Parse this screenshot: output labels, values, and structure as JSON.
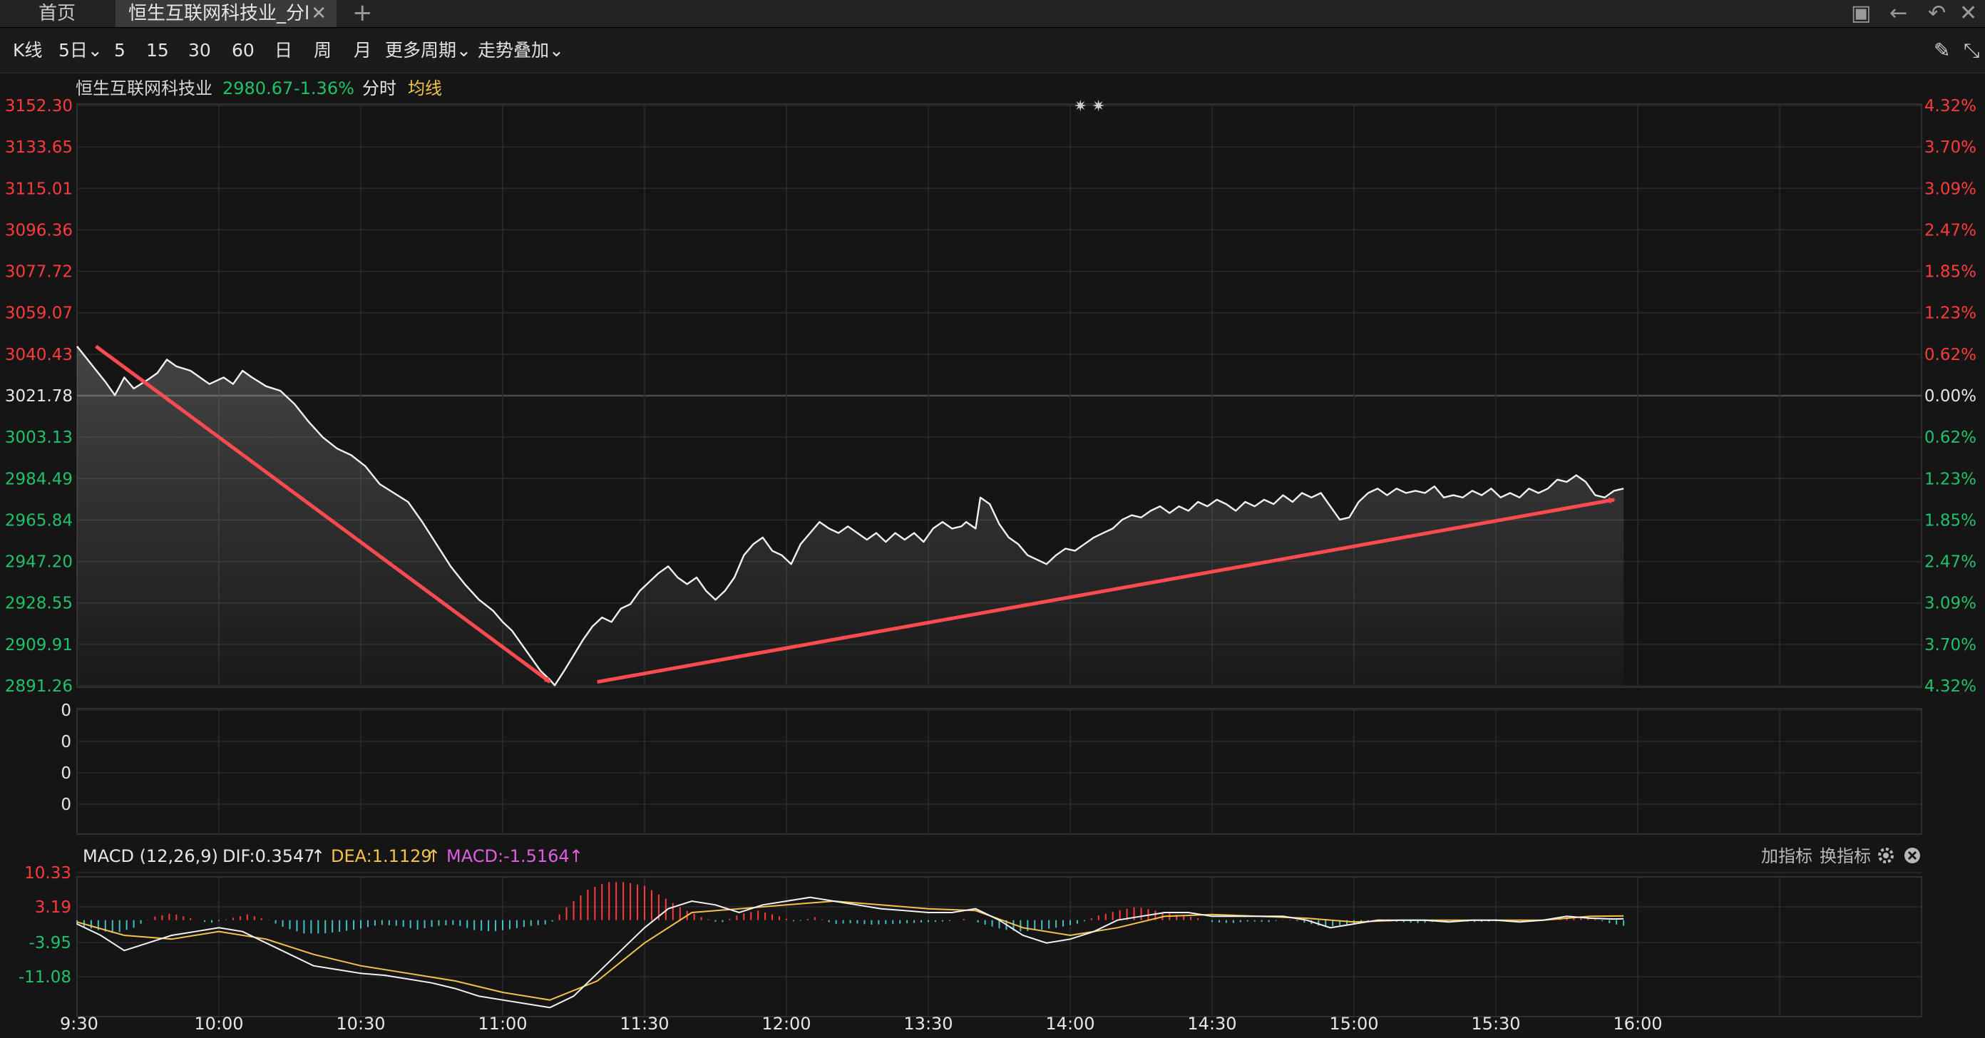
{
  "tabs": {
    "home": "首页",
    "active": "恒生互联网科技业_分l",
    "close": "✕",
    "add": "+"
  },
  "window_controls": [
    "▣",
    "←",
    "↶",
    "✕"
  ],
  "toolbar": {
    "items": [
      "K线",
      "5日",
      "5",
      "15",
      "30",
      "60",
      "日",
      "周",
      "月",
      "更多周期",
      "走势叠加"
    ],
    "dropdown": "⌄",
    "pen": "✎",
    "expand": "⤡"
  },
  "info": {
    "name": "恒生互联网科技业",
    "price": "2980.67",
    "change": "-1.36%",
    "mode": "分时",
    "avg": "均线",
    "marks": "✷ ✷"
  },
  "macd": {
    "label": "MACD (12,26,9)",
    "dif": "DIF:0.3547",
    "dea": "DEA:1.1129",
    "macd": "MACD:-1.5164",
    "arrow": "↑",
    "add_indicator": "加指标",
    "switch_indicator": "换指标"
  },
  "colors": {
    "up": "#ff3b3b",
    "down": "#1fc26b",
    "line": "#f2f2f2",
    "dea": "#f3c24a",
    "macd": "#e05de0",
    "grid": "#2b2b2b",
    "arrow": "#ff4a4f",
    "hist_neg": "#3fc2c8"
  },
  "chart_data": {
    "type": "line",
    "title": "恒生互联网科技业",
    "x_ticks": [
      "9:30",
      "10:00",
      "10:30",
      "11:00",
      "11:30",
      "12:00",
      "13:30",
      "14:00",
      "14:30",
      "15:00",
      "15:30",
      "16:00"
    ],
    "y_left": [
      "3152.30",
      "3133.65",
      "3115.01",
      "3096.36",
      "3077.72",
      "3059.07",
      "3040.43",
      "3021.78",
      "3003.13",
      "2984.49",
      "2965.84",
      "2947.20",
      "2928.55",
      "2909.91",
      "2891.26"
    ],
    "y_right": [
      "4.32%",
      "3.70%",
      "3.09%",
      "2.47%",
      "1.85%",
      "1.23%",
      "0.62%",
      "0.00%",
      "0.62%",
      "1.23%",
      "1.85%",
      "2.47%",
      "3.09%",
      "3.70%",
      "4.32%"
    ],
    "prev_close": 3021.78,
    "ylim": [
      2891.26,
      3152.3
    ],
    "price_series": [
      [
        0,
        3044
      ],
      [
        3,
        3036
      ],
      [
        6,
        3028
      ],
      [
        8,
        3022
      ],
      [
        10,
        3030
      ],
      [
        12,
        3025
      ],
      [
        15,
        3029
      ],
      [
        17,
        3032
      ],
      [
        19,
        3038
      ],
      [
        21,
        3035
      ],
      [
        24,
        3033
      ],
      [
        26,
        3030
      ],
      [
        28,
        3027
      ],
      [
        31,
        3030
      ],
      [
        33,
        3027
      ],
      [
        35,
        3033
      ],
      [
        37,
        3030
      ],
      [
        40,
        3026
      ],
      [
        43,
        3024
      ],
      [
        46,
        3018
      ],
      [
        49,
        3010
      ],
      [
        52,
        3003
      ],
      [
        55,
        2998
      ],
      [
        58,
        2995
      ],
      [
        61,
        2990
      ],
      [
        64,
        2982
      ],
      [
        67,
        2978
      ],
      [
        70,
        2974
      ],
      [
        73,
        2965
      ],
      [
        76,
        2955
      ],
      [
        79,
        2945
      ],
      [
        82,
        2937
      ],
      [
        85,
        2930
      ],
      [
        88,
        2925
      ],
      [
        90,
        2920
      ],
      [
        92,
        2916
      ],
      [
        94,
        2910
      ],
      [
        96,
        2904
      ],
      [
        98,
        2898
      ],
      [
        100,
        2894
      ],
      [
        101,
        2891.5
      ],
      [
        103,
        2898
      ],
      [
        105,
        2905
      ],
      [
        107,
        2912
      ],
      [
        109,
        2918
      ],
      [
        111,
        2922
      ],
      [
        113,
        2920
      ],
      [
        115,
        2926
      ],
      [
        117,
        2928
      ],
      [
        119,
        2934
      ],
      [
        121,
        2938
      ],
      [
        123,
        2942
      ],
      [
        125,
        2945
      ],
      [
        127,
        2940
      ],
      [
        129,
        2937
      ],
      [
        131,
        2940
      ],
      [
        133,
        2934
      ],
      [
        135,
        2930
      ],
      [
        137,
        2934
      ],
      [
        139,
        2940
      ],
      [
        141,
        2950
      ],
      [
        143,
        2955
      ],
      [
        145,
        2958
      ],
      [
        147,
        2952
      ],
      [
        149,
        2950
      ],
      [
        151,
        2946
      ],
      [
        153,
        2955
      ],
      [
        155,
        2960
      ],
      [
        157,
        2965
      ],
      [
        159,
        2962
      ],
      [
        161,
        2960
      ],
      [
        163,
        2963
      ],
      [
        165,
        2960
      ],
      [
        167,
        2957
      ],
      [
        169,
        2960
      ],
      [
        171,
        2956
      ],
      [
        173,
        2960
      ],
      [
        175,
        2957
      ],
      [
        177,
        2960
      ],
      [
        179,
        2956
      ],
      [
        181,
        2962
      ],
      [
        183,
        2965
      ],
      [
        185,
        2962
      ],
      [
        187,
        2963
      ],
      [
        188,
        2965
      ],
      [
        190,
        2962
      ],
      [
        191,
        2976
      ],
      [
        193,
        2973
      ],
      [
        195,
        2964
      ],
      [
        197,
        2958
      ],
      [
        199,
        2955
      ],
      [
        201,
        2950
      ],
      [
        203,
        2948
      ],
      [
        205,
        2946
      ],
      [
        207,
        2950
      ],
      [
        209,
        2953
      ],
      [
        211,
        2952
      ],
      [
        213,
        2955
      ],
      [
        215,
        2958
      ],
      [
        217,
        2960
      ],
      [
        219,
        2962
      ],
      [
        221,
        2966
      ],
      [
        223,
        2968
      ],
      [
        225,
        2967
      ],
      [
        227,
        2970
      ],
      [
        229,
        2972
      ],
      [
        231,
        2969
      ],
      [
        233,
        2972
      ],
      [
        235,
        2970
      ],
      [
        237,
        2974
      ],
      [
        239,
        2972
      ],
      [
        241,
        2975
      ],
      [
        243,
        2973
      ],
      [
        245,
        2970
      ],
      [
        247,
        2974
      ],
      [
        249,
        2972
      ],
      [
        251,
        2975
      ],
      [
        253,
        2973
      ],
      [
        255,
        2977
      ],
      [
        257,
        2974
      ],
      [
        259,
        2978
      ],
      [
        261,
        2976
      ],
      [
        263,
        2978
      ],
      [
        265,
        2972
      ],
      [
        267,
        2966
      ],
      [
        269,
        2967
      ],
      [
        271,
        2974
      ],
      [
        273,
        2978
      ],
      [
        275,
        2980
      ],
      [
        277,
        2977
      ],
      [
        279,
        2980
      ],
      [
        281,
        2978
      ],
      [
        283,
        2979
      ],
      [
        285,
        2978
      ],
      [
        287,
        2981
      ],
      [
        289,
        2976
      ],
      [
        291,
        2977
      ],
      [
        293,
        2976
      ],
      [
        295,
        2979
      ],
      [
        297,
        2977
      ],
      [
        299,
        2980
      ],
      [
        301,
        2976
      ],
      [
        303,
        2978
      ],
      [
        305,
        2976
      ],
      [
        307,
        2980
      ],
      [
        309,
        2978
      ],
      [
        311,
        2980
      ],
      [
        313,
        2984
      ],
      [
        315,
        2983
      ],
      [
        317,
        2986
      ],
      [
        319,
        2983
      ],
      [
        321,
        2977
      ],
      [
        323,
        2976
      ],
      [
        325,
        2979
      ],
      [
        327,
        2980
      ]
    ],
    "macd_dif": [
      [
        0,
        -1
      ],
      [
        5,
        -4
      ],
      [
        10,
        -8
      ],
      [
        15,
        -6
      ],
      [
        20,
        -4
      ],
      [
        25,
        -3
      ],
      [
        30,
        -2
      ],
      [
        35,
        -3
      ],
      [
        40,
        -6
      ],
      [
        45,
        -9
      ],
      [
        50,
        -12
      ],
      [
        55,
        -13
      ],
      [
        60,
        -14
      ],
      [
        65,
        -14.5
      ],
      [
        70,
        -15.5
      ],
      [
        75,
        -16.5
      ],
      [
        80,
        -18
      ],
      [
        85,
        -20
      ],
      [
        90,
        -21
      ],
      [
        95,
        -22
      ],
      [
        100,
        -23
      ],
      [
        105,
        -20
      ],
      [
        110,
        -14
      ],
      [
        115,
        -8
      ],
      [
        120,
        -2
      ],
      [
        125,
        3
      ],
      [
        130,
        5
      ],
      [
        135,
        4
      ],
      [
        140,
        2
      ],
      [
        145,
        4
      ],
      [
        150,
        5
      ],
      [
        155,
        6
      ],
      [
        160,
        5
      ],
      [
        165,
        4
      ],
      [
        170,
        3
      ],
      [
        175,
        2.5
      ],
      [
        180,
        2
      ],
      [
        185,
        2
      ],
      [
        190,
        3
      ],
      [
        195,
        0
      ],
      [
        200,
        -4
      ],
      [
        205,
        -6
      ],
      [
        210,
        -5
      ],
      [
        215,
        -3
      ],
      [
        220,
        0
      ],
      [
        225,
        1
      ],
      [
        230,
        2
      ],
      [
        235,
        2
      ],
      [
        240,
        1
      ],
      [
        245,
        1
      ],
      [
        250,
        1
      ],
      [
        255,
        1
      ],
      [
        260,
        0
      ],
      [
        265,
        -2
      ],
      [
        270,
        -1
      ],
      [
        275,
        0
      ],
      [
        280,
        0
      ],
      [
        285,
        0
      ],
      [
        290,
        -0.5
      ],
      [
        295,
        0
      ],
      [
        300,
        0
      ],
      [
        305,
        -0.5
      ],
      [
        310,
        0
      ],
      [
        315,
        1
      ],
      [
        320,
        0.5
      ],
      [
        325,
        0.3
      ],
      [
        327,
        0.35
      ]
    ],
    "macd_dea": [
      [
        0,
        -0.5
      ],
      [
        10,
        -4
      ],
      [
        20,
        -5
      ],
      [
        30,
        -3
      ],
      [
        40,
        -5
      ],
      [
        50,
        -9
      ],
      [
        60,
        -12
      ],
      [
        70,
        -14
      ],
      [
        80,
        -16
      ],
      [
        90,
        -19
      ],
      [
        100,
        -21
      ],
      [
        110,
        -16
      ],
      [
        120,
        -6
      ],
      [
        130,
        2
      ],
      [
        140,
        3
      ],
      [
        150,
        4
      ],
      [
        160,
        5
      ],
      [
        170,
        4
      ],
      [
        180,
        3
      ],
      [
        190,
        2.5
      ],
      [
        200,
        -2
      ],
      [
        210,
        -4
      ],
      [
        220,
        -2
      ],
      [
        230,
        1
      ],
      [
        240,
        1.5
      ],
      [
        250,
        1
      ],
      [
        260,
        0.5
      ],
      [
        270,
        -0.5
      ],
      [
        280,
        0
      ],
      [
        290,
        0
      ],
      [
        300,
        0
      ],
      [
        310,
        0
      ],
      [
        320,
        1
      ],
      [
        327,
        1.11
      ]
    ],
    "macd_hist": [
      [
        0,
        -1.2
      ],
      [
        4,
        -2.5
      ],
      [
        8,
        -3.5
      ],
      [
        12,
        -2
      ],
      [
        16,
        0.8
      ],
      [
        20,
        1.8
      ],
      [
        24,
        0.5
      ],
      [
        28,
        -0.8
      ],
      [
        32,
        0.3
      ],
      [
        36,
        1.5
      ],
      [
        40,
        0.2
      ],
      [
        44,
        -2
      ],
      [
        48,
        -3.5
      ],
      [
        52,
        -3.5
      ],
      [
        56,
        -3
      ],
      [
        60,
        -2.2
      ],
      [
        64,
        -1.2
      ],
      [
        68,
        -1.5
      ],
      [
        72,
        -2.5
      ],
      [
        76,
        -1.5
      ],
      [
        80,
        -1.2
      ],
      [
        84,
        -2.6
      ],
      [
        88,
        -3
      ],
      [
        92,
        -2.3
      ],
      [
        96,
        -1.5
      ],
      [
        100,
        -1
      ],
      [
        104,
        4
      ],
      [
        108,
        8
      ],
      [
        112,
        10
      ],
      [
        116,
        10
      ],
      [
        120,
        9
      ],
      [
        124,
        6
      ],
      [
        128,
        3
      ],
      [
        132,
        0.8
      ],
      [
        136,
        -0.8
      ],
      [
        140,
        1.5
      ],
      [
        144,
        2.5
      ],
      [
        148,
        1.2
      ],
      [
        152,
        -0.5
      ],
      [
        156,
        0.8
      ],
      [
        160,
        -1
      ],
      [
        164,
        -0.8
      ],
      [
        168,
        -1.2
      ],
      [
        172,
        -1
      ],
      [
        176,
        -0.8
      ],
      [
        180,
        -0.5
      ],
      [
        184,
        -0.3
      ],
      [
        188,
        0.4
      ],
      [
        192,
        -1.2
      ],
      [
        196,
        -2.5
      ],
      [
        200,
        -3
      ],
      [
        204,
        -2.5
      ],
      [
        208,
        -1.8
      ],
      [
        212,
        -0.8
      ],
      [
        216,
        1.2
      ],
      [
        220,
        2.5
      ],
      [
        224,
        3.5
      ],
      [
        228,
        2.5
      ],
      [
        232,
        1.5
      ],
      [
        236,
        0.8
      ],
      [
        240,
        -0.5
      ],
      [
        244,
        -0.8
      ],
      [
        248,
        -0.3
      ],
      [
        252,
        -0.5
      ],
      [
        256,
        0.3
      ],
      [
        260,
        -0.8
      ],
      [
        264,
        -1.8
      ],
      [
        268,
        -1.2
      ],
      [
        272,
        -0.6
      ],
      [
        276,
        -0.3
      ],
      [
        280,
        -0.5
      ],
      [
        284,
        -0.8
      ],
      [
        288,
        -0.3
      ],
      [
        292,
        -0.3
      ],
      [
        296,
        -0.5
      ],
      [
        300,
        -0.3
      ],
      [
        304,
        -0.2
      ],
      [
        308,
        -0.3
      ],
      [
        312,
        0.6
      ],
      [
        316,
        1
      ],
      [
        320,
        0.6
      ],
      [
        324,
        -0.8
      ],
      [
        327,
        -1.5
      ]
    ],
    "macd_ticks": [
      "10.33",
      "3.19",
      "-3.95",
      "-11.08"
    ],
    "macd_ylim": [
      -25,
      11
    ],
    "volume_ticks": [
      "0",
      "0",
      "0",
      "0"
    ]
  }
}
